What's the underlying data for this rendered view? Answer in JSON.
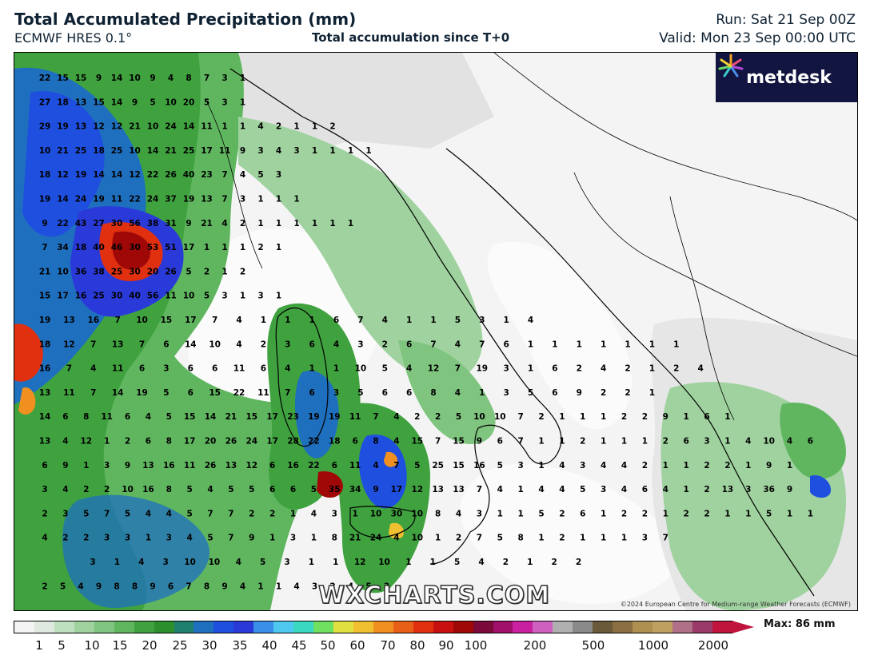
{
  "header": {
    "title": "Total Accumulated Precipitation (mm)",
    "model": "ECMWF HRES 0.1°",
    "accumulation": "Total accumulation since T+0",
    "run": "Run: Sat 21 Sep 00Z",
    "valid": "Valid: Mon 23 Sep 00:00 UTC"
  },
  "logo": {
    "text": "metdesk",
    "icon": "metdesk-flower-icon"
  },
  "watermark": "WXCHARTS.COM",
  "credit": "©2024 European Centre for Medium-range Weather Forecasts (ECMWF)",
  "legend": {
    "max_label": "Max: 86 mm",
    "ticks": [
      "1",
      "5",
      "10",
      "15",
      "20",
      "25",
      "30",
      "35",
      "40",
      "45",
      "50",
      "60",
      "70",
      "80",
      "90",
      "100",
      "200",
      "500",
      "1000",
      "2000"
    ],
    "colors": [
      "#f4f4f4",
      "#dfe9df",
      "#bfe0bf",
      "#9fd29f",
      "#7fc47f",
      "#5fb65f",
      "#3fa23f",
      "#2b8f2b",
      "#1f7f6f",
      "#1f6fbf",
      "#1f4fdf",
      "#2a3ad8",
      "#3a8fe8",
      "#4fc8f0",
      "#3ad8c0",
      "#6fe060",
      "#e0e040",
      "#f0c030",
      "#f09020",
      "#e86018",
      "#e03010",
      "#c81010",
      "#a00808",
      "#7a0a3a",
      "#a0106a",
      "#c820a0",
      "#d060c0",
      "#b0b0b0",
      "#8a8a8a",
      "#6a5a3a",
      "#8a7040",
      "#b09050",
      "#c0a060",
      "#b07088",
      "#9a3a6a",
      "#c0143c"
    ]
  },
  "map_numbers": [
    [
      "22",
      "15",
      "15",
      "9",
      "14",
      "10",
      "9",
      "4",
      "8",
      "7",
      "3",
      "1"
    ],
    [
      "27",
      "18",
      "13",
      "15",
      "14",
      "9",
      "5",
      "10",
      "20",
      "5",
      "3",
      "1"
    ],
    [
      "29",
      "19",
      "13",
      "12",
      "12",
      "21",
      "10",
      "24",
      "14",
      "11",
      "1",
      "1",
      "4",
      "2",
      "1",
      "1",
      "2"
    ],
    [
      "10",
      "21",
      "25",
      "18",
      "25",
      "10",
      "14",
      "21",
      "25",
      "17",
      "11",
      "9",
      "3",
      "4",
      "3",
      "1",
      "1",
      "1",
      "1"
    ],
    [
      "18",
      "12",
      "19",
      "14",
      "14",
      "12",
      "22",
      "26",
      "40",
      "23",
      "7",
      "4",
      "5",
      "3"
    ],
    [
      "19",
      "14",
      "24",
      "19",
      "11",
      "22",
      "24",
      "37",
      "19",
      "13",
      "7",
      "3",
      "1",
      "1",
      "1"
    ],
    [
      "9",
      "22",
      "43",
      "27",
      "30",
      "56",
      "38",
      "31",
      "9",
      "21",
      "4",
      "2",
      "1",
      "1",
      "1",
      "1",
      "1",
      "1"
    ],
    [
      "7",
      "34",
      "18",
      "40",
      "46",
      "30",
      "53",
      "51",
      "17",
      "1",
      "1",
      "1",
      "2",
      "1"
    ],
    [
      "21",
      "10",
      "36",
      "38",
      "25",
      "30",
      "20",
      "26",
      "5",
      "2",
      "1",
      "2"
    ],
    [
      "15",
      "17",
      "16",
      "25",
      "30",
      "40",
      "56",
      "11",
      "10",
      "5",
      "3",
      "1",
      "3",
      "1"
    ],
    [
      "19",
      "13",
      "16",
      "7",
      "10",
      "15",
      "17",
      "7",
      "4",
      "1",
      "1",
      "1",
      "6",
      "7",
      "4",
      "1",
      "1",
      "5",
      "3",
      "1",
      "4"
    ],
    [
      "18",
      "12",
      "7",
      "13",
      "7",
      "6",
      "14",
      "10",
      "4",
      "2",
      "3",
      "6",
      "4",
      "3",
      "2",
      "6",
      "7",
      "4",
      "7",
      "6",
      "1",
      "1",
      "1",
      "1",
      "1",
      "1",
      "1"
    ],
    [
      "16",
      "7",
      "4",
      "11",
      "6",
      "3",
      "6",
      "6",
      "11",
      "6",
      "4",
      "1",
      "1",
      "10",
      "5",
      "4",
      "12",
      "7",
      "19",
      "3",
      "1",
      "6",
      "2",
      "4",
      "2",
      "1",
      "2",
      "4"
    ],
    [
      "13",
      "11",
      "7",
      "14",
      "19",
      "5",
      "6",
      "15",
      "22",
      "11",
      "7",
      "6",
      "3",
      "5",
      "6",
      "6",
      "8",
      "4",
      "1",
      "3",
      "5",
      "6",
      "9",
      "2",
      "2",
      "1"
    ],
    [
      "14",
      "6",
      "8",
      "11",
      "6",
      "4",
      "5",
      "15",
      "14",
      "21",
      "15",
      "17",
      "23",
      "19",
      "19",
      "11",
      "7",
      "4",
      "2",
      "2",
      "5",
      "10",
      "10",
      "7",
      "2",
      "1",
      "1",
      "1",
      "2",
      "2",
      "9",
      "1",
      "6",
      "1"
    ],
    [
      "13",
      "4",
      "12",
      "1",
      "2",
      "6",
      "8",
      "17",
      "20",
      "26",
      "24",
      "17",
      "28",
      "22",
      "18",
      "6",
      "8",
      "4",
      "15",
      "7",
      "15",
      "9",
      "6",
      "7",
      "1",
      "1",
      "2",
      "1",
      "1",
      "1",
      "2",
      "6",
      "3",
      "1",
      "4",
      "10",
      "4",
      "6"
    ],
    [
      "6",
      "9",
      "1",
      "3",
      "9",
      "13",
      "16",
      "11",
      "26",
      "13",
      "12",
      "6",
      "16",
      "22",
      "6",
      "11",
      "4",
      "7",
      "5",
      "25",
      "15",
      "16",
      "5",
      "3",
      "1",
      "4",
      "3",
      "4",
      "4",
      "2",
      "1",
      "1",
      "2",
      "2",
      "1",
      "9",
      "1"
    ],
    [
      "3",
      "4",
      "2",
      "2",
      "10",
      "16",
      "8",
      "5",
      "4",
      "5",
      "5",
      "6",
      "6",
      "5",
      "35",
      "34",
      "9",
      "17",
      "12",
      "13",
      "13",
      "7",
      "4",
      "1",
      "4",
      "4",
      "5",
      "3",
      "4",
      "6",
      "4",
      "1",
      "2",
      "13",
      "3",
      "36",
      "9"
    ],
    [
      "2",
      "3",
      "5",
      "7",
      "5",
      "4",
      "4",
      "5",
      "7",
      "7",
      "2",
      "2",
      "1",
      "4",
      "3",
      "1",
      "10",
      "30",
      "10",
      "8",
      "4",
      "3",
      "1",
      "1",
      "5",
      "2",
      "6",
      "1",
      "2",
      "2",
      "1",
      "2",
      "2",
      "1",
      "1",
      "5",
      "1",
      "1"
    ],
    [
      "4",
      "2",
      "2",
      "3",
      "3",
      "1",
      "3",
      "4",
      "5",
      "7",
      "9",
      "1",
      "3",
      "1",
      "8",
      "21",
      "24",
      "4",
      "10",
      "1",
      "2",
      "7",
      "5",
      "8",
      "1",
      "2",
      "1",
      "1",
      "1",
      "3",
      "7"
    ],
    [
      "3",
      "1",
      "4",
      "3",
      "10",
      "10",
      "4",
      "5",
      "3",
      "1",
      "1",
      "12",
      "10",
      "1",
      "1",
      "5",
      "4",
      "2",
      "1",
      "2",
      "2"
    ],
    [
      "2",
      "5",
      "4",
      "9",
      "8",
      "8",
      "9",
      "6",
      "7",
      "8",
      "9",
      "4",
      "1",
      "1",
      "4",
      "3",
      "2",
      "4",
      "5",
      "3"
    ]
  ]
}
